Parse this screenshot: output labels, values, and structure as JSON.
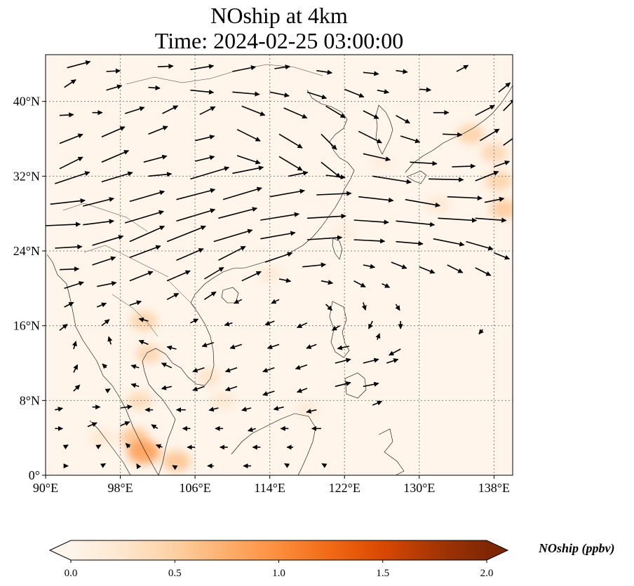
{
  "title": {
    "line1": "NOship at 4km",
    "line2": "Time: 2024-02-25 03:00:00"
  },
  "map": {
    "extent": {
      "lon": [
        90,
        140
      ],
      "lat": [
        0,
        45
      ]
    },
    "lon_ticks": [
      90,
      98,
      106,
      114,
      122,
      130,
      138
    ],
    "lon_tick_labels": [
      "90°E",
      "98°E",
      "106°E",
      "114°E",
      "122°E",
      "130°E",
      "138°E"
    ],
    "lat_ticks": [
      0,
      8,
      16,
      24,
      32,
      40
    ],
    "lat_tick_labels": [
      "0°",
      "8°N",
      "16°N",
      "24°N",
      "32°N",
      "40°N"
    ],
    "gridlines": "dotted",
    "background_color": "#fff5eb",
    "coastline_color": "#000000"
  },
  "colorbar": {
    "label": "NOship (ppbv)",
    "min": 0,
    "max": 2,
    "ticks": [
      0,
      0.5,
      1,
      1.5,
      2
    ],
    "tick_labels": [
      "0.0",
      "0.5",
      "1.0",
      "1.5",
      "2.0"
    ],
    "colors": [
      "#fff5eb",
      "#fee6ce",
      "#fdd0a2",
      "#fdae6b",
      "#fd8d3c",
      "#f16913",
      "#d94801",
      "#a63603",
      "#7f2704"
    ],
    "extend": "both"
  },
  "concentration_hotspots": [
    {
      "lon": 100.5,
      "lat": 16.5,
      "value": 0.5
    },
    {
      "lon": 101,
      "lat": 13,
      "value": 0.45
    },
    {
      "lon": 100,
      "lat": 8,
      "value": 0.4
    },
    {
      "lon": 99.5,
      "lat": 4,
      "value": 0.6
    },
    {
      "lon": 100.5,
      "lat": 2.5,
      "value": 0.9
    },
    {
      "lon": 104,
      "lat": 1.5,
      "value": 0.6
    },
    {
      "lon": 96,
      "lat": 4,
      "value": 0.25
    },
    {
      "lon": 107.5,
      "lat": 10.5,
      "value": 0.3
    },
    {
      "lon": 109,
      "lat": 8,
      "value": 0.25
    },
    {
      "lon": 118,
      "lat": 7,
      "value": 0.2
    },
    {
      "lon": 122,
      "lat": 26,
      "value": 0.15
    },
    {
      "lon": 114,
      "lat": 21.5,
      "value": 0.2
    },
    {
      "lon": 135.5,
      "lat": 36.5,
      "value": 0.5
    },
    {
      "lon": 138,
      "lat": 34.5,
      "value": 0.45
    },
    {
      "lon": 138.5,
      "lat": 31.5,
      "value": 0.5
    },
    {
      "lon": 139,
      "lat": 28.5,
      "value": 0.55
    },
    {
      "lon": 132,
      "lat": 29,
      "value": 0.25
    },
    {
      "lon": 126,
      "lat": 33.5,
      "value": 0.15
    }
  ],
  "wind_vectors": [
    {
      "lon": 92.3,
      "lat": 43.6,
      "u": 3,
      "v": 0.8
    },
    {
      "lon": 96.5,
      "lat": 43.2,
      "u": 1.8,
      "v": 0.1
    },
    {
      "lon": 102,
      "lat": 43.7,
      "u": 2,
      "v": 0.1
    },
    {
      "lon": 105.5,
      "lat": 43.4,
      "u": 3,
      "v": 0.5
    },
    {
      "lon": 110,
      "lat": 43.2,
      "u": 3,
      "v": 0.6
    },
    {
      "lon": 114.5,
      "lat": 43.5,
      "u": 2,
      "v": 0.3
    },
    {
      "lon": 119,
      "lat": 43.3,
      "u": 2,
      "v": -0.3
    },
    {
      "lon": 124,
      "lat": 43.1,
      "u": 2,
      "v": -0.2
    },
    {
      "lon": 127.5,
      "lat": 43.3,
      "u": 1.5,
      "v": -0.2
    },
    {
      "lon": 134,
      "lat": 43.2,
      "u": 1.5,
      "v": 0.8
    },
    {
      "lon": 92,
      "lat": 41.5,
      "u": 1.5,
      "v": 1
    },
    {
      "lon": 96.5,
      "lat": 41.2,
      "u": 2,
      "v": 0.6
    },
    {
      "lon": 101,
      "lat": 41.5,
      "u": 1.5,
      "v": -0.1
    },
    {
      "lon": 105.5,
      "lat": 41.2,
      "u": 3,
      "v": -0.3
    },
    {
      "lon": 110,
      "lat": 41,
      "u": 3.5,
      "v": -0.3
    },
    {
      "lon": 114,
      "lat": 41,
      "u": 2.5,
      "v": -0.5
    },
    {
      "lon": 118,
      "lat": 41,
      "u": 2.5,
      "v": -0.8
    },
    {
      "lon": 122,
      "lat": 41.3,
      "u": 2.5,
      "v": -1
    },
    {
      "lon": 125.5,
      "lat": 41.2,
      "u": 1.5,
      "v": -0.3
    },
    {
      "lon": 130,
      "lat": 41.3,
      "u": 1.5,
      "v": -0.1
    },
    {
      "lon": 138.5,
      "lat": 41,
      "u": 1.5,
      "v": 1.2
    },
    {
      "lon": 91.5,
      "lat": 38.5,
      "u": 1.8,
      "v": 0.1
    },
    {
      "lon": 95,
      "lat": 38.8,
      "u": 1.3,
      "v": 0
    },
    {
      "lon": 98.5,
      "lat": 38.7,
      "u": 2.5,
      "v": 0.8
    },
    {
      "lon": 102.5,
      "lat": 38.7,
      "u": 2,
      "v": 1
    },
    {
      "lon": 106.5,
      "lat": 38.6,
      "u": 2,
      "v": 1
    },
    {
      "lon": 111,
      "lat": 39.5,
      "u": 3,
      "v": -1.2
    },
    {
      "lon": 115.5,
      "lat": 39.3,
      "u": 3,
      "v": -1.3
    },
    {
      "lon": 120,
      "lat": 39.5,
      "u": 2.5,
      "v": -1.5
    },
    {
      "lon": 124,
      "lat": 39,
      "u": 2,
      "v": -1
    },
    {
      "lon": 127.5,
      "lat": 38.5,
      "u": 1.8,
      "v": -1
    },
    {
      "lon": 131.5,
      "lat": 38.8,
      "u": 2,
      "v": 0
    },
    {
      "lon": 136,
      "lat": 38.5,
      "u": 2.5,
      "v": 1.3
    },
    {
      "lon": 139,
      "lat": 39,
      "u": 1.5,
      "v": 1.5
    },
    {
      "lon": 91.5,
      "lat": 35.5,
      "u": 3,
      "v": 1.2
    },
    {
      "lon": 96,
      "lat": 36.2,
      "u": 3,
      "v": 1.3
    },
    {
      "lon": 101,
      "lat": 36.5,
      "u": 2.5,
      "v": 1
    },
    {
      "lon": 106,
      "lat": 35.8,
      "u": 2.5,
      "v": 0.6
    },
    {
      "lon": 110.5,
      "lat": 37,
      "u": 3,
      "v": -1.5
    },
    {
      "lon": 115,
      "lat": 36.5,
      "u": 3,
      "v": -1.8
    },
    {
      "lon": 119.5,
      "lat": 36.5,
      "u": 2,
      "v": -2
    },
    {
      "lon": 123.5,
      "lat": 36.8,
      "u": 3,
      "v": -1.5
    },
    {
      "lon": 128,
      "lat": 36.3,
      "u": 2.5,
      "v": -0.8
    },
    {
      "lon": 132.5,
      "lat": 36.5,
      "u": 2.5,
      "v": -0.1
    },
    {
      "lon": 136.5,
      "lat": 35.8,
      "u": 2.5,
      "v": 1.5
    },
    {
      "lon": 139,
      "lat": 35.3,
      "u": 1.8,
      "v": 1.3
    },
    {
      "lon": 91.5,
      "lat": 32.8,
      "u": 3,
      "v": 1.5
    },
    {
      "lon": 96,
      "lat": 33.5,
      "u": 3.5,
      "v": 1.5
    },
    {
      "lon": 100.5,
      "lat": 33.5,
      "u": 3,
      "v": 0.8
    },
    {
      "lon": 106,
      "lat": 33.6,
      "u": 2.5,
      "v": 0.6
    },
    {
      "lon": 110.5,
      "lat": 34.2,
      "u": 3,
      "v": -1
    },
    {
      "lon": 115,
      "lat": 34.1,
      "u": 3,
      "v": -1.8
    },
    {
      "lon": 119.5,
      "lat": 33.5,
      "u": 2.5,
      "v": -2
    },
    {
      "lon": 124,
      "lat": 34.4,
      "u": 3.5,
      "v": -0.8
    },
    {
      "lon": 129,
      "lat": 33.5,
      "u": 3.5,
      "v": -0.2
    },
    {
      "lon": 133.5,
      "lat": 33,
      "u": 3,
      "v": 0.1
    },
    {
      "lon": 138,
      "lat": 33,
      "u": 2,
      "v": 0.7
    },
    {
      "lon": 91,
      "lat": 31.2,
      "u": 4.5,
      "v": 1.5
    },
    {
      "lon": 96,
      "lat": 31.4,
      "u": 4,
      "v": 1.2
    },
    {
      "lon": 101,
      "lat": 32,
      "u": 3,
      "v": 0.3
    },
    {
      "lon": 105.5,
      "lat": 31.7,
      "u": 5,
      "v": 1.5
    },
    {
      "lon": 110,
      "lat": 32.3,
      "u": 4,
      "v": 0.8
    },
    {
      "lon": 116,
      "lat": 32,
      "u": 2.5,
      "v": 0.5
    },
    {
      "lon": 120,
      "lat": 32.1,
      "u": 2.5,
      "v": -0.3
    },
    {
      "lon": 125,
      "lat": 32,
      "u": 5,
      "v": -0.8
    },
    {
      "lon": 131,
      "lat": 31.7,
      "u": 4.5,
      "v": -0.1
    },
    {
      "lon": 136,
      "lat": 31.5,
      "u": 3,
      "v": 1.2
    },
    {
      "lon": 90.5,
      "lat": 29,
      "u": 4.5,
      "v": 0.5
    },
    {
      "lon": 94,
      "lat": 28.8,
      "u": 4,
      "v": 1
    },
    {
      "lon": 99,
      "lat": 29.3,
      "u": 4.5,
      "v": 1.3
    },
    {
      "lon": 104,
      "lat": 29.5,
      "u": 5,
      "v": 1.3
    },
    {
      "lon": 109,
      "lat": 29.5,
      "u": 5,
      "v": 1.5
    },
    {
      "lon": 114,
      "lat": 29.8,
      "u": 4.5,
      "v": 0.8
    },
    {
      "lon": 119,
      "lat": 30,
      "u": 4.5,
      "v": 0.2
    },
    {
      "lon": 123.5,
      "lat": 29.8,
      "u": 4.5,
      "v": -0.5
    },
    {
      "lon": 128.5,
      "lat": 29.5,
      "u": 4.5,
      "v": -0.8
    },
    {
      "lon": 133,
      "lat": 29.8,
      "u": 4.5,
      "v": -0.2
    },
    {
      "lon": 137,
      "lat": 29.2,
      "u": 2.5,
      "v": 0.5
    },
    {
      "lon": 90,
      "lat": 26.7,
      "u": 4.5,
      "v": 0.2
    },
    {
      "lon": 94,
      "lat": 26.8,
      "u": 4,
      "v": 0.5
    },
    {
      "lon": 98.5,
      "lat": 27,
      "u": 5,
      "v": 1.5
    },
    {
      "lon": 104,
      "lat": 27.2,
      "u": 5,
      "v": 1.5
    },
    {
      "lon": 108.5,
      "lat": 27.5,
      "u": 5,
      "v": 1.3
    },
    {
      "lon": 113,
      "lat": 27.3,
      "u": 5,
      "v": 0.8
    },
    {
      "lon": 118,
      "lat": 27.5,
      "u": 5,
      "v": 0.3
    },
    {
      "lon": 123,
      "lat": 27.3,
      "u": 4.5,
      "v": -0.3
    },
    {
      "lon": 127.5,
      "lat": 27.2,
      "u": 5,
      "v": -0.5
    },
    {
      "lon": 132,
      "lat": 27.5,
      "u": 5,
      "v": -0.3
    },
    {
      "lon": 136,
      "lat": 27.5,
      "u": 4,
      "v": -0.3
    },
    {
      "lon": 91,
      "lat": 24.3,
      "u": 3.5,
      "v": 0.2
    },
    {
      "lon": 95,
      "lat": 24.6,
      "u": 4,
      "v": 1.2
    },
    {
      "lon": 99,
      "lat": 25,
      "u": 4.5,
      "v": 2
    },
    {
      "lon": 103,
      "lat": 25,
      "u": 5,
      "v": 2
    },
    {
      "lon": 108,
      "lat": 25,
      "u": 5,
      "v": 1.5
    },
    {
      "lon": 113,
      "lat": 25.3,
      "u": 4.5,
      "v": 0.8
    },
    {
      "lon": 118,
      "lat": 25.2,
      "u": 4.5,
      "v": 0.3
    },
    {
      "lon": 123,
      "lat": 25.2,
      "u": 4,
      "v": -0.2
    },
    {
      "lon": 127.5,
      "lat": 25,
      "u": 3.5,
      "v": -0.3
    },
    {
      "lon": 131.5,
      "lat": 25.3,
      "u": 4,
      "v": -0.8
    },
    {
      "lon": 135,
      "lat": 25,
      "u": 3.5,
      "v": -1
    },
    {
      "lon": 138,
      "lat": 23.8,
      "u": 2,
      "v": -0.8
    },
    {
      "lon": 91.5,
      "lat": 22,
      "u": 2.5,
      "v": 0.1
    },
    {
      "lon": 95,
      "lat": 22.5,
      "u": 3,
      "v": 1
    },
    {
      "lon": 99,
      "lat": 23.3,
      "u": 4,
      "v": 1.5
    },
    {
      "lon": 104,
      "lat": 23,
      "u": 3.5,
      "v": 1.5
    },
    {
      "lon": 108.5,
      "lat": 23,
      "u": 3.5,
      "v": 1.8
    },
    {
      "lon": 113.5,
      "lat": 22.8,
      "u": 3.5,
      "v": 1.2
    },
    {
      "lon": 117.5,
      "lat": 22.3,
      "u": 3,
      "v": 0.3
    },
    {
      "lon": 124,
      "lat": 22.5,
      "u": 1.5,
      "v": -0.3
    },
    {
      "lon": 127,
      "lat": 22.8,
      "u": 2,
      "v": -0.8
    },
    {
      "lon": 130,
      "lat": 22.3,
      "u": 2,
      "v": -0.8
    },
    {
      "lon": 133,
      "lat": 22.5,
      "u": 2,
      "v": -1
    },
    {
      "lon": 136,
      "lat": 22.2,
      "u": 2,
      "v": -1
    },
    {
      "lon": 92,
      "lat": 20,
      "u": 2.5,
      "v": 0.8
    },
    {
      "lon": 95.5,
      "lat": 20.2,
      "u": 2.5,
      "v": 0.5
    },
    {
      "lon": 99,
      "lat": 20.8,
      "u": 3,
      "v": 1.2
    },
    {
      "lon": 103,
      "lat": 20.8,
      "u": 3,
      "v": 1.3
    },
    {
      "lon": 107,
      "lat": 21,
      "u": 2.5,
      "v": 1.5
    },
    {
      "lon": 111,
      "lat": 20.8,
      "u": 2.5,
      "v": 1.2
    },
    {
      "lon": 115,
      "lat": 21,
      "u": 1.5,
      "v": -0.3
    },
    {
      "lon": 119.5,
      "lat": 20.8,
      "u": 1.5,
      "v": -0.3
    },
    {
      "lon": 123,
      "lat": 20.8,
      "u": 1.5,
      "v": -0.8
    },
    {
      "lon": 126,
      "lat": 20.5,
      "u": 1,
      "v": -0.5
    },
    {
      "lon": 92,
      "lat": 18,
      "u": 1.2,
      "v": 0.6
    },
    {
      "lon": 95.5,
      "lat": 18,
      "u": 1.2,
      "v": 0.5
    },
    {
      "lon": 99,
      "lat": 18.2,
      "u": 1.5,
      "v": 0.5
    },
    {
      "lon": 103,
      "lat": 18.8,
      "u": 1.5,
      "v": 0.8
    },
    {
      "lon": 107,
      "lat": 18.8,
      "u": 1.5,
      "v": 1
    },
    {
      "lon": 111,
      "lat": 18.8,
      "u": -1,
      "v": -0.5
    },
    {
      "lon": 115,
      "lat": 18.8,
      "u": -1,
      "v": -0.5
    },
    {
      "lon": 120,
      "lat": 18.3,
      "u": 0.8,
      "v": -0.8
    },
    {
      "lon": 124,
      "lat": 18.5,
      "u": 0.3,
      "v": -1
    },
    {
      "lon": 127.5,
      "lat": 18.3,
      "u": 0.5,
      "v": -0.8
    },
    {
      "lon": 91.5,
      "lat": 15.5,
      "u": 1,
      "v": 0.8
    },
    {
      "lon": 96,
      "lat": 16,
      "u": 1,
      "v": 0.8
    },
    {
      "lon": 101,
      "lat": 16.5,
      "u": -1.2,
      "v": 0.3
    },
    {
      "lon": 105.5,
      "lat": 16.3,
      "u": 1,
      "v": 0.5
    },
    {
      "lon": 110,
      "lat": 16.3,
      "u": -1,
      "v": -0.3
    },
    {
      "lon": 114.5,
      "lat": 16.5,
      "u": -1.2,
      "v": -0.5
    },
    {
      "lon": 118,
      "lat": 16.3,
      "u": -1.3,
      "v": -0.6
    },
    {
      "lon": 121.5,
      "lat": 16,
      "u": -1,
      "v": -0.6
    },
    {
      "lon": 125,
      "lat": 16.5,
      "u": -0.5,
      "v": -1
    },
    {
      "lon": 128,
      "lat": 16.5,
      "u": 0,
      "v": -1
    },
    {
      "lon": 136.8,
      "lat": 15.6,
      "u": -0.5,
      "v": -0.6
    },
    {
      "lon": 93,
      "lat": 13.5,
      "u": 0.3,
      "v": 1
    },
    {
      "lon": 97,
      "lat": 14,
      "u": -0.3,
      "v": 1
    },
    {
      "lon": 101,
      "lat": 14,
      "u": -1.2,
      "v": 0.5
    },
    {
      "lon": 104,
      "lat": 13.5,
      "u": -1.2,
      "v": 0.3
    },
    {
      "lon": 108,
      "lat": 14.2,
      "u": -1.5,
      "v": -0.5
    },
    {
      "lon": 111,
      "lat": 14,
      "u": -1.5,
      "v": -0.5
    },
    {
      "lon": 115,
      "lat": 14,
      "u": -1.5,
      "v": -0.5
    },
    {
      "lon": 119,
      "lat": 14,
      "u": -1.3,
      "v": -0.5
    },
    {
      "lon": 122.5,
      "lat": 13.8,
      "u": -1.5,
      "v": -0.3
    },
    {
      "lon": 125.5,
      "lat": 14.5,
      "u": 0.3,
      "v": 0.8
    },
    {
      "lon": 128,
      "lat": 13.5,
      "u": -1.5,
      "v": -0.8
    },
    {
      "lon": 93,
      "lat": 11,
      "u": 0.5,
      "v": 1
    },
    {
      "lon": 96.5,
      "lat": 11.5,
      "u": -0.5,
      "v": 0.5
    },
    {
      "lon": 100,
      "lat": 11.5,
      "u": -1,
      "v": 0.3
    },
    {
      "lon": 103.5,
      "lat": 11.5,
      "u": -1.3,
      "v": 0.6
    },
    {
      "lon": 107,
      "lat": 11.5,
      "u": -1.5,
      "v": -0.5
    },
    {
      "lon": 110.5,
      "lat": 11.5,
      "u": -1.5,
      "v": -0.5
    },
    {
      "lon": 114.5,
      "lat": 11.5,
      "u": -1.5,
      "v": -0.5
    },
    {
      "lon": 118,
      "lat": 11.8,
      "u": -1.5,
      "v": -0.5
    },
    {
      "lon": 121,
      "lat": 12,
      "u": 2,
      "v": 0.5
    },
    {
      "lon": 124,
      "lat": 12,
      "u": 2,
      "v": 0.5
    },
    {
      "lon": 126.5,
      "lat": 12,
      "u": 1.5,
      "v": 0.5
    },
    {
      "lon": 93,
      "lat": 9,
      "u": 0.8,
      "v": 0.8
    },
    {
      "lon": 96.5,
      "lat": 9,
      "u": 0.5,
      "v": 0.3
    },
    {
      "lon": 100,
      "lat": 9.5,
      "u": -1,
      "v": 0.3
    },
    {
      "lon": 103.5,
      "lat": 9.5,
      "u": -1.3,
      "v": -0.3
    },
    {
      "lon": 107,
      "lat": 9.5,
      "u": -1.5,
      "v": -0.5
    },
    {
      "lon": 110.5,
      "lat": 9.5,
      "u": -1.5,
      "v": -0.5
    },
    {
      "lon": 114.5,
      "lat": 9,
      "u": -1.5,
      "v": -0.5
    },
    {
      "lon": 118,
      "lat": 9.3,
      "u": -1.3,
      "v": -0.5
    },
    {
      "lon": 121,
      "lat": 9.5,
      "u": 2,
      "v": 0.5
    },
    {
      "lon": 124,
      "lat": 9.5,
      "u": 2,
      "v": 0.4
    },
    {
      "lon": 91,
      "lat": 7,
      "u": 1,
      "v": 0.2
    },
    {
      "lon": 95,
      "lat": 7.3,
      "u": 1,
      "v": 0
    },
    {
      "lon": 98,
      "lat": 7.2,
      "u": 1.5,
      "v": 0.2
    },
    {
      "lon": 101.5,
      "lat": 7,
      "u": -1,
      "v": 0
    },
    {
      "lon": 105,
      "lat": 7,
      "u": -1.2,
      "v": 0
    },
    {
      "lon": 108.5,
      "lat": 7.2,
      "u": -1.2,
      "v": -0.3
    },
    {
      "lon": 112,
      "lat": 7.2,
      "u": -1.2,
      "v": -0.3
    },
    {
      "lon": 115.5,
      "lat": 7.3,
      "u": -1.3,
      "v": -0.3
    },
    {
      "lon": 119,
      "lat": 7,
      "u": -1.3,
      "v": -0.3
    },
    {
      "lon": 125,
      "lat": 7.5,
      "u": 1.2,
      "v": 0.5
    },
    {
      "lon": 91,
      "lat": 5,
      "u": 1,
      "v": 0
    },
    {
      "lon": 94.5,
      "lat": 5.2,
      "u": 1.2,
      "v": 0.5
    },
    {
      "lon": 98,
      "lat": 5.3,
      "u": 1.2,
      "v": 0.5
    },
    {
      "lon": 102,
      "lat": 5,
      "u": -0.8,
      "v": 0.5
    },
    {
      "lon": 105.5,
      "lat": 5,
      "u": -1,
      "v": 0
    },
    {
      "lon": 109,
      "lat": 5,
      "u": -1,
      "v": 0
    },
    {
      "lon": 112.5,
      "lat": 5,
      "u": -1,
      "v": -0.3
    },
    {
      "lon": 116,
      "lat": 5,
      "u": -1,
      "v": 0
    },
    {
      "lon": 119.5,
      "lat": 5,
      "u": -1.2,
      "v": 0
    },
    {
      "lon": 92,
      "lat": 3,
      "u": 0.5,
      "v": 0.3
    },
    {
      "lon": 95.5,
      "lat": 3,
      "u": 0.5,
      "v": 0.3
    },
    {
      "lon": 99,
      "lat": 3,
      "u": -0.5,
      "v": 0.5
    },
    {
      "lon": 102.5,
      "lat": 3,
      "u": -0.8,
      "v": 0.3
    },
    {
      "lon": 106,
      "lat": 3,
      "u": -1,
      "v": 0
    },
    {
      "lon": 109.5,
      "lat": 3,
      "u": -1,
      "v": 0
    },
    {
      "lon": 113,
      "lat": 3,
      "u": -1,
      "v": 0
    },
    {
      "lon": 116.5,
      "lat": 3,
      "u": -0.8,
      "v": 0
    },
    {
      "lon": 92,
      "lat": 1,
      "u": 0.5,
      "v": 0
    },
    {
      "lon": 96,
      "lat": 1,
      "u": 0.5,
      "v": 0.3
    },
    {
      "lon": 100,
      "lat": 0.8,
      "u": -0.3,
      "v": 0.5
    },
    {
      "lon": 104,
      "lat": 0.8,
      "u": -0.5,
      "v": 0.3
    },
    {
      "lon": 108,
      "lat": 1,
      "u": -0.8,
      "v": 0
    },
    {
      "lon": 112,
      "lat": 1,
      "u": -1,
      "v": 0
    },
    {
      "lon": 116,
      "lat": 1,
      "u": -0.5,
      "v": 0.3
    },
    {
      "lon": 120,
      "lat": 1,
      "u": -0.5,
      "v": 0.3
    }
  ]
}
